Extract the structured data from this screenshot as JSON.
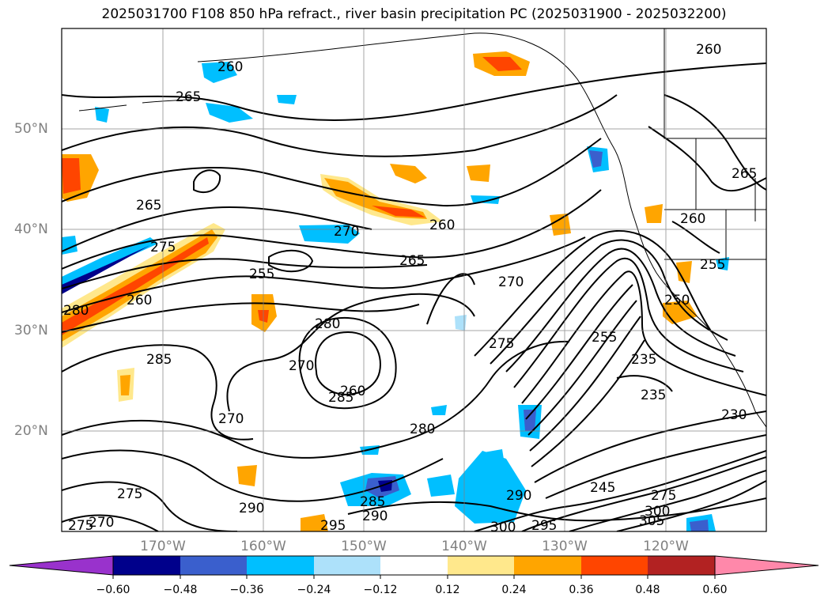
{
  "title": "2025031700 F108 850 hPa refract., river basin precipitation PC (2025031900 - 2025032200)",
  "lat_labels": [
    "50°N",
    "40°N",
    "30°N",
    "20°N"
  ],
  "lon_labels": [
    "170°W",
    "160°W",
    "150°W",
    "140°W",
    "130°W",
    "120°W"
  ],
  "colorbar": {
    "ticks": [
      "−0.60",
      "−0.48",
      "−0.36",
      "−0.24",
      "−0.12",
      "0.12",
      "0.24",
      "0.36",
      "0.48",
      "0.60"
    ],
    "colors": [
      "#9932CC",
      "#00008B",
      "#3A5FCD",
      "#00BFFF",
      "#ADE1FA",
      "#FFFFFF",
      "#FFE88C",
      "#FFA500",
      "#FF4500",
      "#B22222",
      "#FF88AA"
    ]
  },
  "contour_labels": [
    "260",
    "265",
    "260",
    "265",
    "270",
    "260",
    "265",
    "275",
    "255",
    "270",
    "260",
    "280",
    "280",
    "275",
    "255",
    "235",
    "285",
    "270",
    "260",
    "285",
    "270",
    "280",
    "235",
    "230",
    "275",
    "245",
    "275",
    "290",
    "285",
    "290",
    "295",
    "290",
    "300",
    "295",
    "305",
    "300",
    "270",
    "275",
    "265",
    "260",
    "255",
    "250"
  ]
}
